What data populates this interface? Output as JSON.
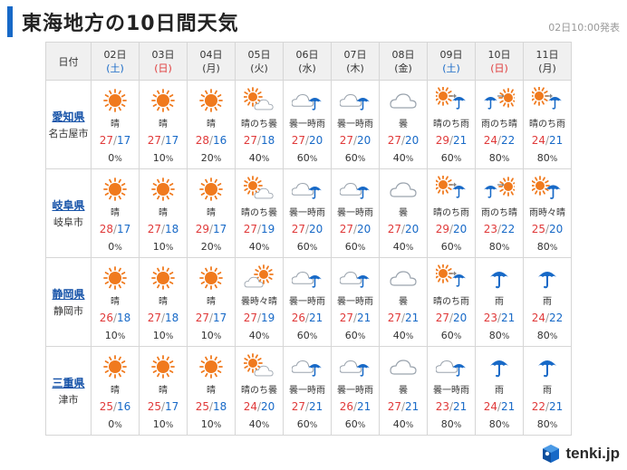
{
  "title": "東海地方の10日間天気",
  "issued": "02日10:00発表",
  "header_label": "日付",
  "logo_text": "tenki.jp",
  "colors": {
    "accent": "#1769c7",
    "high": "#e03a3a",
    "low": "#1769c7",
    "sun": "#f07a1e",
    "rain": "#1769c7"
  },
  "days": [
    {
      "date": "02日",
      "weekday": "(土)",
      "type": "sat"
    },
    {
      "date": "03日",
      "weekday": "(日)",
      "type": "sun"
    },
    {
      "date": "04日",
      "weekday": "(月)",
      "type": "weekday"
    },
    {
      "date": "05日",
      "weekday": "(火)",
      "type": "weekday"
    },
    {
      "date": "06日",
      "weekday": "(水)",
      "type": "weekday"
    },
    {
      "date": "07日",
      "weekday": "(木)",
      "type": "weekday"
    },
    {
      "date": "08日",
      "weekday": "(金)",
      "type": "weekday"
    },
    {
      "date": "09日",
      "weekday": "(土)",
      "type": "sat"
    },
    {
      "date": "10日",
      "weekday": "(日)",
      "type": "sun"
    },
    {
      "date": "11日",
      "weekday": "(月)",
      "type": "weekday"
    }
  ],
  "pop_unit": "%",
  "regions": [
    {
      "pref": "愛知県",
      "city": "名古屋市",
      "forecast": [
        {
          "weather": "晴",
          "icon": "sun-icon",
          "high": "27",
          "low": "17",
          "pop": "0"
        },
        {
          "weather": "晴",
          "icon": "sun-icon",
          "high": "27",
          "low": "17",
          "pop": "10"
        },
        {
          "weather": "晴",
          "icon": "sun-icon",
          "high": "28",
          "low": "16",
          "pop": "20"
        },
        {
          "weather": "晴のち曇",
          "icon": "sun-then-cloud-icon",
          "high": "27",
          "low": "18",
          "pop": "40"
        },
        {
          "weather": "曇一時雨",
          "icon": "cloud-rain-icon",
          "high": "27",
          "low": "20",
          "pop": "60"
        },
        {
          "weather": "曇一時雨",
          "icon": "cloud-rain-icon",
          "high": "27",
          "low": "20",
          "pop": "60"
        },
        {
          "weather": "曇",
          "icon": "cloud-icon",
          "high": "27",
          "low": "20",
          "pop": "40"
        },
        {
          "weather": "晴のち雨",
          "icon": "sun-then-rain-icon",
          "high": "29",
          "low": "21",
          "pop": "60"
        },
        {
          "weather": "雨のち晴",
          "icon": "rain-then-sun-icon",
          "high": "24",
          "low": "22",
          "pop": "80"
        },
        {
          "weather": "晴のち雨",
          "icon": "sun-then-rain-icon",
          "high": "24",
          "low": "21",
          "pop": "80"
        }
      ]
    },
    {
      "pref": "岐阜県",
      "city": "岐阜市",
      "forecast": [
        {
          "weather": "晴",
          "icon": "sun-icon",
          "high": "28",
          "low": "17",
          "pop": "0"
        },
        {
          "weather": "晴",
          "icon": "sun-icon",
          "high": "27",
          "low": "18",
          "pop": "10"
        },
        {
          "weather": "晴",
          "icon": "sun-icon",
          "high": "29",
          "low": "17",
          "pop": "20"
        },
        {
          "weather": "晴のち曇",
          "icon": "sun-then-cloud-icon",
          "high": "27",
          "low": "19",
          "pop": "40"
        },
        {
          "weather": "曇一時雨",
          "icon": "cloud-rain-icon",
          "high": "27",
          "low": "20",
          "pop": "60"
        },
        {
          "weather": "曇一時雨",
          "icon": "cloud-rain-icon",
          "high": "27",
          "low": "20",
          "pop": "60"
        },
        {
          "weather": "曇",
          "icon": "cloud-icon",
          "high": "27",
          "low": "20",
          "pop": "40"
        },
        {
          "weather": "晴のち雨",
          "icon": "sun-then-rain-icon",
          "high": "29",
          "low": "20",
          "pop": "60"
        },
        {
          "weather": "雨のち晴",
          "icon": "rain-then-sun-icon",
          "high": "23",
          "low": "22",
          "pop": "80"
        },
        {
          "weather": "雨時々晴",
          "icon": "rain-sometimes-sun-icon",
          "high": "25",
          "low": "20",
          "pop": "80"
        }
      ]
    },
    {
      "pref": "静岡県",
      "city": "静岡市",
      "forecast": [
        {
          "weather": "晴",
          "icon": "sun-icon",
          "high": "26",
          "low": "18",
          "pop": "10"
        },
        {
          "weather": "晴",
          "icon": "sun-icon",
          "high": "27",
          "low": "18",
          "pop": "10"
        },
        {
          "weather": "晴",
          "icon": "sun-icon",
          "high": "27",
          "low": "17",
          "pop": "10"
        },
        {
          "weather": "曇時々晴",
          "icon": "cloud-sometimes-sun-icon",
          "high": "27",
          "low": "19",
          "pop": "40"
        },
        {
          "weather": "曇一時雨",
          "icon": "cloud-rain-icon",
          "high": "26",
          "low": "21",
          "pop": "60"
        },
        {
          "weather": "曇一時雨",
          "icon": "cloud-rain-icon",
          "high": "27",
          "low": "21",
          "pop": "60"
        },
        {
          "weather": "曇",
          "icon": "cloud-icon",
          "high": "27",
          "low": "21",
          "pop": "40"
        },
        {
          "weather": "晴のち雨",
          "icon": "sun-then-rain-icon",
          "high": "27",
          "low": "20",
          "pop": "60"
        },
        {
          "weather": "雨",
          "icon": "rain-icon",
          "high": "23",
          "low": "21",
          "pop": "80"
        },
        {
          "weather": "雨",
          "icon": "rain-icon",
          "high": "24",
          "low": "22",
          "pop": "80"
        }
      ]
    },
    {
      "pref": "三重県",
      "city": "津市",
      "forecast": [
        {
          "weather": "晴",
          "icon": "sun-icon",
          "high": "25",
          "low": "16",
          "pop": "0"
        },
        {
          "weather": "晴",
          "icon": "sun-icon",
          "high": "25",
          "low": "17",
          "pop": "10"
        },
        {
          "weather": "晴",
          "icon": "sun-icon",
          "high": "25",
          "low": "18",
          "pop": "10"
        },
        {
          "weather": "晴のち曇",
          "icon": "sun-then-cloud-icon",
          "high": "24",
          "low": "20",
          "pop": "40"
        },
        {
          "weather": "曇一時雨",
          "icon": "cloud-rain-icon",
          "high": "27",
          "low": "21",
          "pop": "60"
        },
        {
          "weather": "曇一時雨",
          "icon": "cloud-rain-icon",
          "high": "26",
          "low": "21",
          "pop": "60"
        },
        {
          "weather": "曇",
          "icon": "cloud-icon",
          "high": "27",
          "low": "21",
          "pop": "40"
        },
        {
          "weather": "曇一時雨",
          "icon": "cloud-rain-icon",
          "high": "23",
          "low": "21",
          "pop": "80"
        },
        {
          "weather": "雨",
          "icon": "rain-icon",
          "high": "24",
          "low": "21",
          "pop": "80"
        },
        {
          "weather": "雨",
          "icon": "rain-icon",
          "high": "22",
          "low": "21",
          "pop": "80"
        }
      ]
    }
  ]
}
